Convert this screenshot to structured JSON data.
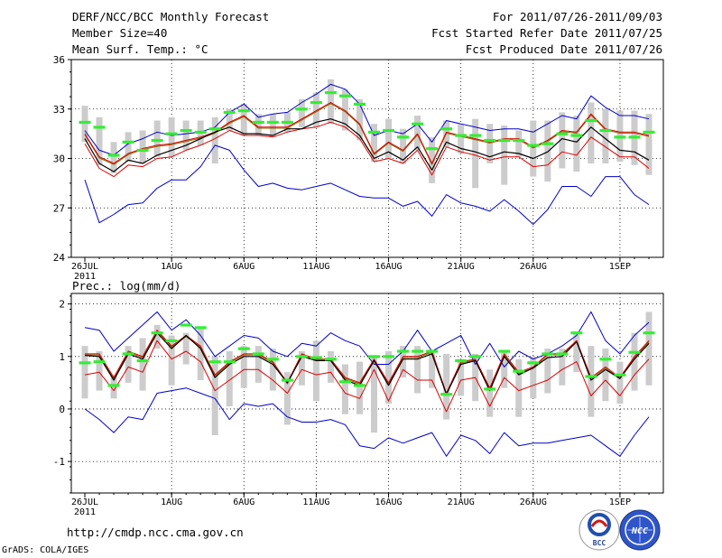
{
  "header": {
    "title": "DERF/NCC/BCC Monthly Forecast",
    "member_size": "Member Size=40",
    "variable1": "Mean Surf. Temp.: °C",
    "period": "For 2011/07/26-2011/09/03",
    "start_date": "Fcst Started Refer Date 2011/07/25",
    "produced_date": "Fcst Produced Date 2011/07/26"
  },
  "footer": {
    "url": "http://cmdp.ncc.cma.gov.cn",
    "grads": "GrADS: COLA/IGES",
    "logo_bcc": "BCC",
    "logo_ncc": "NCC"
  },
  "colors": {
    "ensemble_mean": "#000000",
    "quantile_band": "#dd0000",
    "extreme_range": "#0000cc",
    "median_bar": "#33ee33",
    "spread_bar": "#cccccc",
    "shadow_line": "#886600"
  },
  "chart_data": [
    {
      "type": "line",
      "title": "Mean Surf. Temp.: °C",
      "xlabel": "",
      "ylabel": "",
      "ylim": [
        24,
        36
      ],
      "yticks": [
        24,
        27,
        30,
        33,
        36
      ],
      "xticks": [
        {
          "day": 0,
          "label": "26JUL"
        },
        {
          "day": 6,
          "label": "1AUG"
        },
        {
          "day": 11,
          "label": "6AUG"
        },
        {
          "day": 16,
          "label": "11AUG"
        },
        {
          "day": 21,
          "label": "16AUG"
        },
        {
          "day": 26,
          "label": "21AUG"
        },
        {
          "day": 31,
          "label": "26AUG"
        },
        {
          "day": 37,
          "label": "1SEP"
        }
      ],
      "year_label": "2011",
      "x": [
        0,
        1,
        2,
        3,
        4,
        5,
        6,
        7,
        8,
        9,
        10,
        11,
        12,
        13,
        14,
        15,
        16,
        17,
        18,
        19,
        20,
        21,
        22,
        23,
        24,
        25,
        26,
        27,
        28,
        29,
        30,
        31,
        32,
        33,
        34,
        35,
        36,
        37,
        38,
        39
      ],
      "series": [
        {
          "name": "max",
          "values": [
            31.7,
            30.5,
            30.2,
            30.9,
            31.2,
            31.6,
            31.4,
            31.5,
            31.6,
            31.9,
            32.8,
            33.3,
            32.5,
            32.7,
            32.8,
            33.4,
            33.9,
            34.5,
            34.2,
            33.3,
            31.4,
            31.7,
            31.5,
            32.1,
            31.0,
            32.3,
            32.1,
            31.9,
            31.7,
            31.8,
            31.8,
            31.6,
            32.1,
            32.6,
            32.4,
            33.8,
            33.1,
            32.6,
            32.6,
            32.4
          ]
        },
        {
          "name": "upper_q",
          "values": [
            31.5,
            30.1,
            29.7,
            30.3,
            30.6,
            30.8,
            30.9,
            31.1,
            31.3,
            31.6,
            32.2,
            32.6,
            31.9,
            31.9,
            31.9,
            32.4,
            32.9,
            33.4,
            32.9,
            32.1,
            30.3,
            31.0,
            30.5,
            31.5,
            29.7,
            31.6,
            31.4,
            31.2,
            31.0,
            31.2,
            31.2,
            30.7,
            31.1,
            31.7,
            31.6,
            32.7,
            31.8,
            31.6,
            31.6,
            31.4
          ]
        },
        {
          "name": "mean",
          "values": [
            31.2,
            29.7,
            29.2,
            29.9,
            29.7,
            30.2,
            30.5,
            30.8,
            31.2,
            31.6,
            31.9,
            31.5,
            31.5,
            31.4,
            31.8,
            31.8,
            32.2,
            32.4,
            32.1,
            31.4,
            30.0,
            30.4,
            29.9,
            30.7,
            29.3,
            31.0,
            30.6,
            30.4,
            30.1,
            30.4,
            30.3,
            30.0,
            30.4,
            31.2,
            31.0,
            31.9,
            31.2,
            30.5,
            30.4,
            29.9
          ]
        },
        {
          "name": "lower_q",
          "values": [
            30.9,
            29.4,
            28.9,
            29.6,
            29.5,
            30.0,
            30.1,
            30.5,
            30.8,
            31.2,
            31.7,
            31.4,
            31.4,
            31.3,
            31.6,
            31.8,
            31.9,
            32.2,
            31.9,
            31.2,
            29.8,
            30.0,
            29.7,
            30.5,
            29.0,
            30.7,
            30.4,
            30.2,
            29.9,
            30.1,
            30.1,
            29.5,
            29.6,
            30.4,
            30.2,
            31.3,
            30.7,
            30.1,
            30.1,
            29.4
          ]
        },
        {
          "name": "min",
          "values": [
            28.7,
            26.1,
            26.6,
            27.2,
            27.3,
            28.2,
            28.7,
            28.7,
            29.5,
            30.8,
            30.5,
            29.3,
            28.3,
            28.5,
            28.2,
            28.1,
            28.3,
            28.5,
            28.1,
            27.7,
            27.6,
            27.6,
            27.1,
            27.4,
            26.5,
            27.8,
            27.3,
            27.1,
            26.8,
            27.5,
            26.8,
            26.0,
            26.9,
            28.3,
            28.3,
            27.7,
            28.9,
            28.9,
            27.8,
            27.2
          ]
        },
        {
          "name": "median",
          "values": [
            32.2,
            31.9,
            30.2,
            31.0,
            30.5,
            31.1,
            31.5,
            31.7,
            31.6,
            31.8,
            32.8,
            32.9,
            32.2,
            32.2,
            32.2,
            33.0,
            33.4,
            34.0,
            33.8,
            33.3,
            31.6,
            31.7,
            31.3,
            32.1,
            30.6,
            31.8,
            31.4,
            31.4,
            31.1,
            31.1,
            31.1,
            30.8,
            30.9,
            31.5,
            31.4,
            32.3,
            31.7,
            31.3,
            31.3,
            31.6
          ]
        }
      ],
      "spread_low": [
        31.0,
        29.6,
        29.1,
        29.8,
        29.7,
        30.1,
        30.1,
        30.5,
        30.8,
        29.7,
        31.7,
        31.4,
        31.4,
        31.3,
        31.6,
        31.9,
        31.9,
        32.1,
        31.7,
        31.1,
        29.8,
        30.0,
        29.7,
        30.5,
        28.5,
        30.7,
        30.3,
        28.2,
        29.7,
        28.4,
        30.1,
        28.9,
        28.6,
        29.4,
        29.2,
        29.7,
        29.7,
        29.8,
        29.6,
        29.0
      ],
      "spread_high": [
        33.2,
        32.5,
        31.0,
        31.6,
        31.7,
        32.3,
        32.5,
        32.3,
        32.3,
        32.5,
        33.0,
        33.3,
        32.7,
        32.7,
        32.8,
        33.6,
        34.0,
        34.8,
        34.2,
        33.6,
        32.1,
        32.4,
        31.8,
        32.6,
        31.3,
        32.3,
        32.1,
        32.4,
        32.1,
        32.0,
        31.7,
        32.3,
        32.3,
        32.8,
        32.6,
        33.4,
        33.0,
        32.9,
        32.9,
        32.7
      ]
    },
    {
      "type": "line",
      "title": "Prec.: log(mm/d)",
      "xlabel": "",
      "ylabel": "",
      "ylim": [
        -1.6,
        2.2
      ],
      "yticks": [
        -1,
        0,
        1,
        2
      ],
      "xticks": [
        {
          "day": 0,
          "label": "26JUL"
        },
        {
          "day": 6,
          "label": "1AUG"
        },
        {
          "day": 11,
          "label": "6AUG"
        },
        {
          "day": 16,
          "label": "11AUG"
        },
        {
          "day": 21,
          "label": "16AUG"
        },
        {
          "day": 26,
          "label": "21AUG"
        },
        {
          "day": 31,
          "label": "26AUG"
        },
        {
          "day": 37,
          "label": "1SEP"
        }
      ],
      "year_label": "2011",
      "x": [
        0,
        1,
        2,
        3,
        4,
        5,
        6,
        7,
        8,
        9,
        10,
        11,
        12,
        13,
        14,
        15,
        16,
        17,
        18,
        19,
        20,
        21,
        22,
        23,
        24,
        25,
        26,
        27,
        28,
        29,
        30,
        31,
        32,
        33,
        34,
        35,
        36,
        37,
        38,
        39
      ],
      "series": [
        {
          "name": "max",
          "values": [
            1.55,
            1.5,
            1.1,
            1.35,
            1.6,
            1.85,
            1.5,
            1.7,
            1.4,
            1.0,
            1.2,
            1.4,
            1.35,
            1.1,
            1.0,
            1.25,
            1.2,
            1.45,
            1.3,
            1.2,
            0.85,
            0.85,
            1.1,
            1.5,
            1.1,
            1.25,
            1.4,
            0.85,
            1.25,
            0.8,
            1.1,
            0.95,
            1.05,
            1.2,
            1.4,
            1.85,
            1.3,
            1.05,
            1.4,
            1.65
          ]
        },
        {
          "name": "upper_q",
          "values": [
            1.05,
            1.05,
            0.6,
            1.1,
            1.0,
            1.5,
            1.2,
            1.4,
            1.2,
            0.65,
            0.9,
            1.05,
            1.05,
            0.9,
            0.5,
            1.05,
            0.95,
            0.95,
            0.6,
            0.5,
            0.95,
            0.5,
            1.0,
            1.0,
            1.1,
            0.3,
            0.9,
            0.95,
            0.4,
            1.05,
            0.7,
            0.8,
            1.05,
            1.05,
            1.3,
            0.6,
            0.8,
            0.6,
            1.0,
            1.3
          ]
        },
        {
          "name": "mean",
          "values": [
            1.02,
            1.0,
            0.55,
            1.05,
            0.95,
            1.45,
            1.15,
            1.4,
            1.15,
            0.6,
            0.85,
            1.0,
            1.0,
            0.85,
            0.5,
            1.0,
            0.92,
            0.92,
            0.55,
            0.45,
            0.92,
            0.45,
            0.95,
            0.95,
            1.05,
            0.28,
            0.85,
            0.92,
            0.35,
            1.0,
            0.65,
            0.78,
            0.98,
            1.0,
            1.28,
            0.55,
            0.75,
            0.58,
            0.95,
            1.25
          ]
        },
        {
          "name": "lower_q",
          "values": [
            0.65,
            0.7,
            0.35,
            0.8,
            0.7,
            1.3,
            0.95,
            1.1,
            0.9,
            0.35,
            0.55,
            0.75,
            0.75,
            0.55,
            0.3,
            0.75,
            0.65,
            0.7,
            0.3,
            0.2,
            0.75,
            0.15,
            0.75,
            0.55,
            0.55,
            -0.05,
            0.55,
            0.6,
            0.05,
            0.6,
            0.35,
            0.45,
            0.55,
            0.75,
            0.9,
            0.25,
            0.55,
            0.25,
            0.65,
            0.95
          ]
        },
        {
          "name": "min",
          "values": [
            0.0,
            -0.2,
            -0.45,
            -0.15,
            -0.2,
            0.3,
            0.35,
            0.4,
            0.3,
            0.2,
            -0.2,
            0.1,
            0.05,
            0.1,
            -0.15,
            -0.25,
            -0.25,
            -0.2,
            -0.3,
            -0.7,
            -0.75,
            -0.55,
            -0.65,
            -0.55,
            -0.45,
            -0.9,
            -0.5,
            -0.6,
            -0.85,
            -0.45,
            -0.7,
            -0.65,
            -0.65,
            -0.6,
            -0.55,
            -0.5,
            -0.7,
            -0.9,
            -0.5,
            -0.15
          ]
        },
        {
          "name": "median",
          "values": [
            0.88,
            0.9,
            0.45,
            1.05,
            0.92,
            1.45,
            1.3,
            1.6,
            1.55,
            0.9,
            0.9,
            1.15,
            1.05,
            0.95,
            0.55,
            1.0,
            0.98,
            0.95,
            0.52,
            0.45,
            1.0,
            1.0,
            1.1,
            1.1,
            1.1,
            0.28,
            0.92,
            1.0,
            0.38,
            1.1,
            0.72,
            0.88,
            1.05,
            1.05,
            1.45,
            0.62,
            0.95,
            0.65,
            1.08,
            1.45
          ]
        }
      ],
      "spread_low": [
        0.2,
        0.35,
        0.2,
        0.5,
        0.35,
        1.15,
        0.45,
        0.85,
        0.55,
        -0.5,
        0.05,
        0.4,
        0.5,
        0.35,
        -0.3,
        0.45,
        0.15,
        0.5,
        -0.1,
        -0.1,
        -0.45,
        0.1,
        0.6,
        0.3,
        0.4,
        -0.2,
        0.25,
        0.15,
        -0.15,
        0.4,
        -0.15,
        0.2,
        0.3,
        0.45,
        0.7,
        -0.15,
        0.15,
        0.1,
        0.35,
        0.45
      ],
      "spread_high": [
        1.2,
        1.1,
        0.65,
        1.2,
        1.35,
        1.6,
        1.4,
        1.45,
        1.55,
        1.0,
        1.1,
        1.2,
        1.2,
        1.15,
        0.7,
        1.1,
        1.3,
        1.1,
        0.85,
        0.9,
        1.0,
        1.1,
        1.2,
        1.2,
        1.1,
        1.05,
        0.95,
        1.05,
        0.75,
        1.1,
        0.95,
        1.0,
        1.15,
        1.15,
        1.45,
        1.2,
        1.15,
        0.9,
        1.45,
        1.85
      ]
    }
  ]
}
